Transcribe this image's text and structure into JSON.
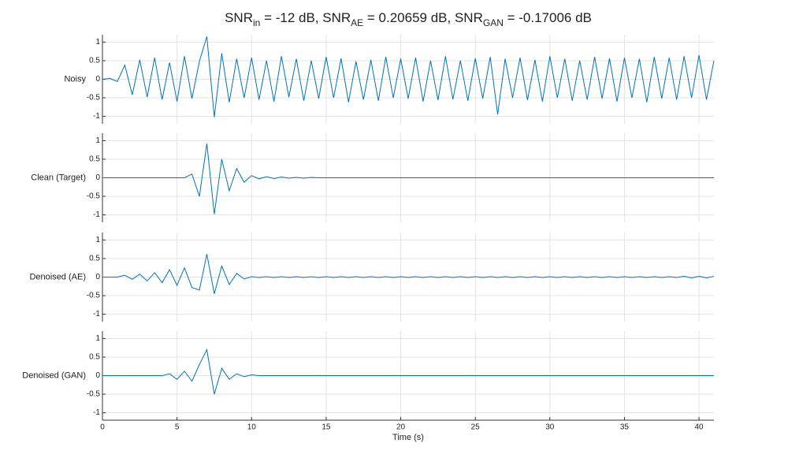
{
  "chart_data": {
    "type": "line",
    "title_parts": [
      "SNR",
      "in",
      " = -12 dB, SNR",
      "AE",
      " = 0.20659 dB, SNR",
      "GAN",
      " = -0.17006 dB"
    ],
    "xlabel": "Time (s)",
    "x": [
      0,
      0.5,
      1,
      1.5,
      2,
      2.5,
      3,
      3.5,
      4,
      4.5,
      5,
      5.5,
      6,
      6.5,
      7,
      7.5,
      8,
      8.5,
      9,
      9.5,
      10,
      10.5,
      11,
      11.5,
      12,
      12.5,
      13,
      13.5,
      14,
      14.5,
      15,
      15.5,
      16,
      16.5,
      17,
      17.5,
      18,
      18.5,
      19,
      19.5,
      20,
      20.5,
      21,
      21.5,
      22,
      22.5,
      23,
      23.5,
      24,
      24.5,
      25,
      25.5,
      26,
      26.5,
      27,
      27.5,
      28,
      28.5,
      29,
      29.5,
      30,
      30.5,
      31,
      31.5,
      32,
      32.5,
      33,
      33.5,
      34,
      34.5,
      35,
      35.5,
      36,
      36.5,
      37,
      37.5,
      38,
      38.5,
      39,
      39.5,
      40,
      40.5,
      41
    ],
    "xlim": [
      0,
      41
    ],
    "xticks": [
      0,
      5,
      10,
      15,
      20,
      25,
      30,
      35,
      40
    ],
    "ylim": [
      -1.2,
      1.2
    ],
    "yticks": [
      -1,
      -0.5,
      0,
      0.5,
      1
    ],
    "grid": true,
    "series": [
      {
        "name": "Noisy",
        "color": "#0072bd",
        "values": [
          0,
          0.02,
          -0.06,
          0.38,
          -0.42,
          0.52,
          -0.48,
          0.58,
          -0.55,
          0.45,
          -0.6,
          0.62,
          -0.52,
          0.48,
          1.15,
          -1.02,
          0.7,
          -0.62,
          0.55,
          -0.5,
          0.58,
          -0.55,
          0.5,
          -0.6,
          0.62,
          -0.48,
          0.55,
          -0.58,
          0.5,
          -0.52,
          0.6,
          -0.5,
          0.56,
          -0.62,
          0.48,
          -0.55,
          0.52,
          -0.58,
          0.6,
          -0.5,
          0.55,
          -0.52,
          0.58,
          -0.6,
          0.5,
          -0.56,
          0.62,
          -0.54,
          0.5,
          -0.58,
          0.56,
          -0.52,
          0.6,
          -0.95,
          0.55,
          -0.5,
          0.58,
          -0.56,
          0.52,
          -0.6,
          0.62,
          -0.5,
          0.55,
          -0.58,
          0.5,
          -0.55,
          0.6,
          -0.52,
          0.56,
          -0.6,
          0.58,
          -0.5,
          0.55,
          -0.62,
          0.6,
          -0.52,
          0.58,
          -0.55,
          0.62,
          -0.5,
          0.65,
          -0.55,
          0.5
        ]
      },
      {
        "name": "Clean (Target)",
        "color": "#0072bd",
        "values": [
          0,
          0,
          0,
          0,
          0,
          0,
          0,
          0,
          0,
          0,
          0,
          0,
          0.1,
          -0.5,
          0.92,
          -0.98,
          0.5,
          -0.35,
          0.25,
          -0.12,
          0.06,
          -0.03,
          0.03,
          -0.02,
          0.02,
          -0.01,
          0.01,
          -0.01,
          0.01,
          0,
          0,
          0,
          0,
          0,
          0,
          0,
          0,
          0,
          0,
          0,
          0,
          0,
          0,
          0,
          0,
          0,
          0,
          0,
          0,
          0,
          0,
          0,
          0,
          0,
          0,
          0,
          0,
          0,
          0,
          0,
          0,
          0,
          0,
          0,
          0,
          0,
          0,
          0,
          0,
          0,
          0,
          0,
          0,
          0,
          0,
          0,
          0,
          0,
          0,
          0,
          0,
          0,
          0
        ]
      },
      {
        "name": "Denoised (AE)",
        "color": "#0072bd",
        "values": [
          0,
          0,
          0,
          0.05,
          -0.06,
          0.08,
          -0.1,
          0.12,
          -0.15,
          0.2,
          -0.22,
          0.25,
          -0.28,
          -0.35,
          0.62,
          -0.45,
          0.3,
          -0.2,
          0.1,
          -0.05,
          0.01,
          -0.01,
          0.01,
          -0.01,
          0.01,
          -0.01,
          0.01,
          -0.01,
          0.01,
          -0.01,
          0.01,
          -0.01,
          0.01,
          -0.01,
          0.01,
          -0.01,
          0.01,
          -0.01,
          0.01,
          -0.01,
          0.01,
          -0.01,
          0.01,
          -0.01,
          0.01,
          -0.01,
          0.01,
          -0.01,
          0.01,
          -0.01,
          0.01,
          -0.01,
          0.01,
          -0.01,
          0.01,
          -0.01,
          0.01,
          -0.01,
          0.01,
          -0.01,
          0.01,
          -0.01,
          0.01,
          -0.01,
          0.01,
          -0.01,
          0.01,
          -0.01,
          0.01,
          -0.01,
          0.01,
          -0.01,
          0.01,
          -0.01,
          0.01,
          -0.01,
          0.01,
          -0.01,
          0.02,
          -0.02,
          0.02,
          -0.02,
          0.02
        ]
      },
      {
        "name": "Denoised (GAN)",
        "color": "#0072bd",
        "values": [
          0,
          0,
          0,
          0,
          0,
          0,
          0,
          0,
          0,
          0.05,
          -0.1,
          0.12,
          -0.15,
          0.3,
          0.7,
          -0.5,
          0.2,
          -0.1,
          0.05,
          -0.03,
          0.02,
          0,
          0,
          0,
          0,
          0,
          0,
          0,
          0,
          0,
          0,
          0,
          0,
          0,
          0,
          0,
          0,
          0,
          0,
          0,
          0,
          0,
          0,
          0,
          0,
          0,
          0,
          0,
          0,
          0,
          0,
          0,
          0,
          0,
          0,
          0,
          0,
          0,
          0,
          0,
          0,
          0,
          0,
          0,
          0,
          0,
          0,
          0,
          0,
          0,
          0,
          0,
          0,
          0,
          0,
          0,
          0,
          0,
          0,
          0,
          0,
          0,
          0
        ]
      }
    ]
  }
}
